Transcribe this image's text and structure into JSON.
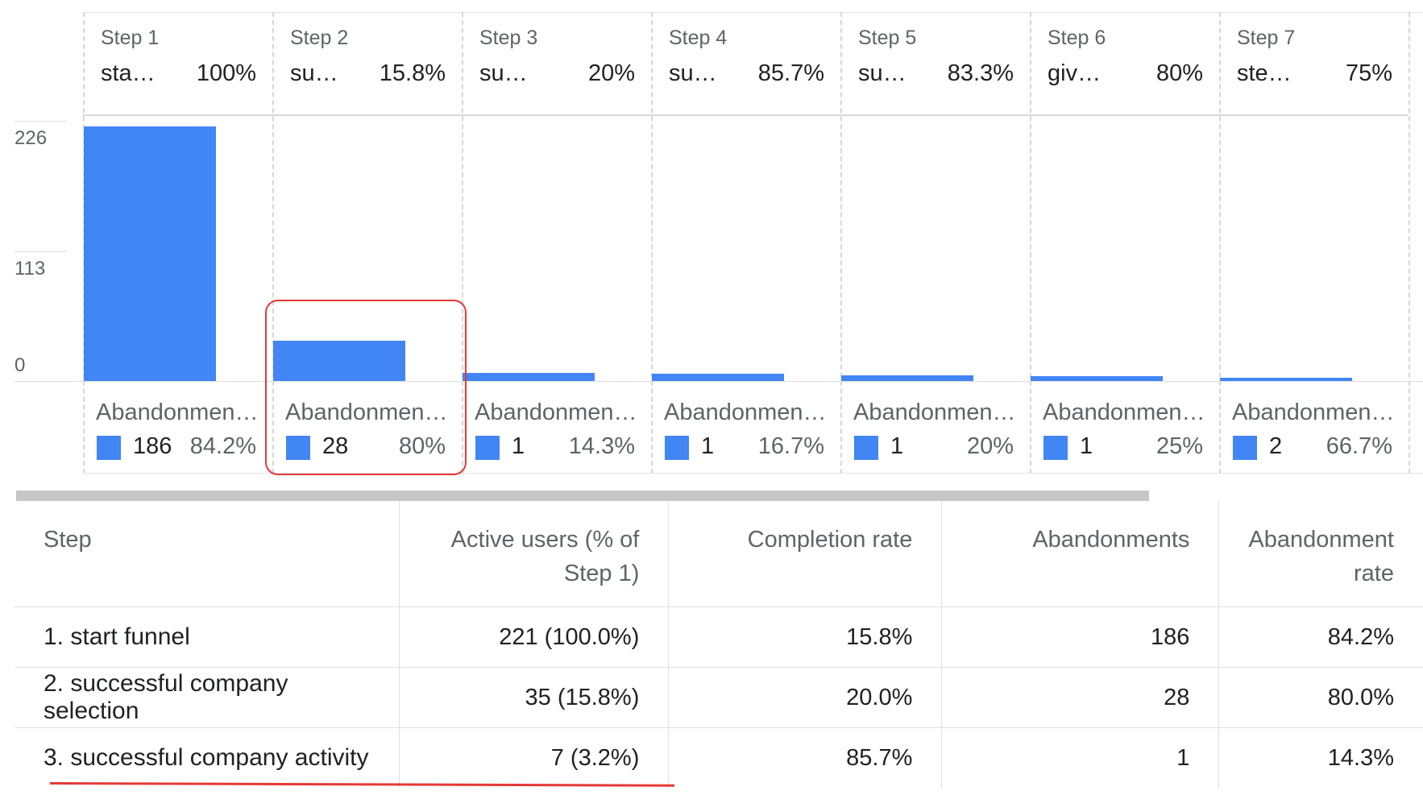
{
  "chart_data": {
    "type": "bar",
    "y_ticks": [
      0,
      113,
      226
    ],
    "ylim": [
      0,
      226
    ],
    "grid": true,
    "bar_color": "#4285f4",
    "steps": [
      {
        "label": "Step 1",
        "name": "sta…",
        "completion_pct": "100%",
        "active_users": 221,
        "abandon_label": "Abandonmen…",
        "abandonments": 186,
        "abandon_rate": "84.2%"
      },
      {
        "label": "Step 2",
        "name": "su…",
        "completion_pct": "15.8%",
        "active_users": 35,
        "abandon_label": "Abandonmen…",
        "abandonments": 28,
        "abandon_rate": "80%"
      },
      {
        "label": "Step 3",
        "name": "su…",
        "completion_pct": "20%",
        "active_users": 7,
        "abandon_label": "Abandonmen…",
        "abandonments": 1,
        "abandon_rate": "14.3%"
      },
      {
        "label": "Step 4",
        "name": "su…",
        "completion_pct": "85.7%",
        "active_users": 6,
        "abandon_label": "Abandonmen…",
        "abandonments": 1,
        "abandon_rate": "16.7%"
      },
      {
        "label": "Step 5",
        "name": "su…",
        "completion_pct": "83.3%",
        "active_users": 5,
        "abandon_label": "Abandonmen…",
        "abandonments": 1,
        "abandon_rate": "20%"
      },
      {
        "label": "Step 6",
        "name": "giv…",
        "completion_pct": "80%",
        "active_users": 4,
        "abandon_label": "Abandonmen…",
        "abandonments": 1,
        "abandon_rate": "25%"
      },
      {
        "label": "Step 7",
        "name": "ste…",
        "completion_pct": "75%",
        "active_users": 3,
        "abandon_label": "Abandonmen…",
        "abandonments": 2,
        "abandon_rate": "66.7%"
      }
    ]
  },
  "table": {
    "headers": {
      "step": "Step",
      "active_users": "Active users (% of Step 1)",
      "completion_rate": "Completion rate",
      "abandonments": "Abandonments",
      "abandonment_rate": "Abandonment rate"
    },
    "rows": [
      {
        "step": "1. start funnel",
        "active_users": "221 (100.0%)",
        "completion_rate": "15.8%",
        "abandonments": "186",
        "abandonment_rate": "84.2%"
      },
      {
        "step": "2. successful company selection",
        "active_users": "35 (15.8%)",
        "completion_rate": "20.0%",
        "abandonments": "28",
        "abandonment_rate": "80.0%"
      },
      {
        "step": "3. successful company activity",
        "active_users": "7 (3.2%)",
        "completion_rate": "85.7%",
        "abandonments": "1",
        "abandonment_rate": "14.3%"
      }
    ]
  }
}
